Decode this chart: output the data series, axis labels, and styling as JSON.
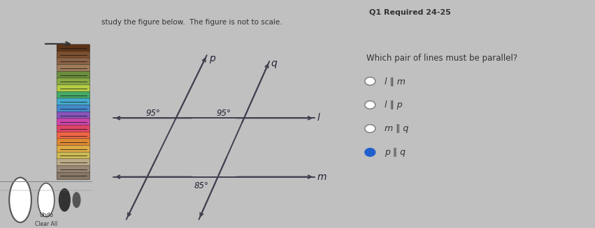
{
  "fig_bg": "#c0c0c0",
  "top_bar_bg": "#d0d8e0",
  "top_bar_text1": "study the figure below.  The figure is not to scale.",
  "top_right_text": "Q1 Required 24-25",
  "diagram_bg": "#f0f4f8",
  "diagram_border": "#cccccc",
  "right_panel_bg": "#d8dce0",
  "line_color": "#404050",
  "angle_95_1": "95°",
  "angle_95_2": "95°",
  "angle_85": "85°",
  "label_p": "p",
  "label_q": "q",
  "label_l": "l",
  "label_m": "m",
  "question_text": "Which pair of lines must be parallel?",
  "options": [
    {
      "text": "l ∥ m",
      "selected": false
    },
    {
      "text": "l ∥ p",
      "selected": false
    },
    {
      "text": "m ∥ q",
      "selected": false
    },
    {
      "text": "p ∥ q",
      "selected": true
    }
  ],
  "crayon_colors": [
    "#5c3317",
    "#7b4f2e",
    "#8b6347",
    "#9e7b5a",
    "#6b8e3e",
    "#88aa44",
    "#b5cc44",
    "#44aa66",
    "#44aacc",
    "#4488cc",
    "#8855bb",
    "#cc44aa",
    "#dd4466",
    "#ee6644",
    "#dd8833",
    "#ddaa44",
    "#ccbb55",
    "#bbaa88",
    "#998877",
    "#887766"
  ]
}
